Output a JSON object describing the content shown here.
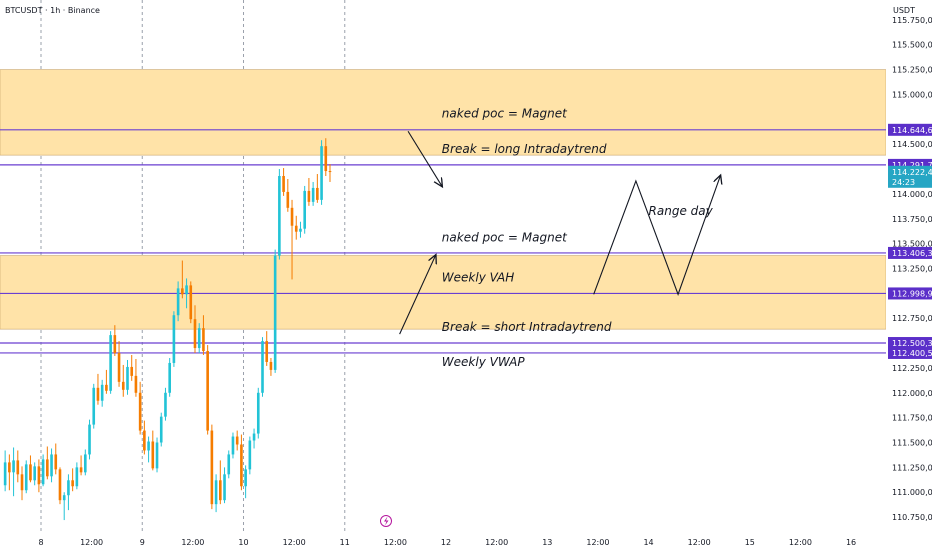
{
  "header": {
    "symbol": "BTCUSDT",
    "interval": "1h",
    "exchange": "Binance",
    "separator": "·",
    "quote_currency": "USDT"
  },
  "colors": {
    "bull": "#26a69a",
    "bull_bright": "#22c3d6",
    "bear": "#f57c00",
    "zone_fill": "#ffe3a8",
    "level_line": "#6a3fd1",
    "tag_bg": "#5b2fc9",
    "current_tag_bg": "#26a6c4",
    "arrow": "#131722"
  },
  "chart_data": {
    "type": "candlestick",
    "y_axis": {
      "range": [
        110600,
        115950
      ],
      "ticks": [
        110750,
        111000,
        111250,
        111500,
        111750,
        112000,
        112250,
        112750,
        113250,
        113500,
        113750,
        114000,
        114500,
        115000,
        115250,
        115500,
        115750
      ],
      "tick_labels": [
        "110.750,00",
        "111.000,00",
        "111.250,00",
        "111.500,00",
        "111.750,00",
        "112.000,00",
        "112.250,00",
        "112.750,00",
        "113.250,00",
        "113.500,00",
        "113.750,00",
        "114.000,00",
        "114.500,00",
        "115.000,00",
        "115.250,00",
        "115.500,00",
        "115.750,00"
      ]
    },
    "x_axis": {
      "range": [
        0,
        210
      ],
      "ticks": [
        {
          "pos": 0,
          "label": "8"
        },
        {
          "pos": 12,
          "label": "12:00"
        },
        {
          "pos": 24,
          "label": "9"
        },
        {
          "pos": 36,
          "label": "12:00"
        },
        {
          "pos": 48,
          "label": "10"
        },
        {
          "pos": 60,
          "label": "12:00"
        },
        {
          "pos": 72,
          "label": "11"
        },
        {
          "pos": 84,
          "label": "12:00"
        },
        {
          "pos": 96,
          "label": "12"
        },
        {
          "pos": 108,
          "label": "12:00"
        },
        {
          "pos": 120,
          "label": "13"
        },
        {
          "pos": 132,
          "label": "12:00"
        },
        {
          "pos": 144,
          "label": "14"
        },
        {
          "pos": 156,
          "label": "12:00"
        },
        {
          "pos": 168,
          "label": "15"
        },
        {
          "pos": 180,
          "label": "12:00"
        },
        {
          "pos": 192,
          "label": "16"
        }
      ],
      "day_separators": [
        0,
        24,
        48,
        72
      ]
    },
    "candles_start_pos": -9,
    "candles": [
      [
        111070,
        111420,
        111010,
        111300
      ],
      [
        111300,
        111380,
        111020,
        111200
      ],
      [
        111200,
        111450,
        110960,
        111320
      ],
      [
        111320,
        111420,
        111100,
        111180
      ],
      [
        111180,
        111260,
        110920,
        111020
      ],
      [
        111020,
        111320,
        110990,
        111280
      ],
      [
        111280,
        111370,
        111100,
        111120
      ],
      [
        111120,
        111300,
        111070,
        111260
      ],
      [
        111260,
        111330,
        111000,
        111080
      ],
      [
        111080,
        111380,
        111060,
        111330
      ],
      [
        111330,
        111460,
        111130,
        111160
      ],
      [
        111160,
        111440,
        111100,
        111380
      ],
      [
        111380,
        111490,
        111180,
        111230
      ],
      [
        111230,
        111250,
        110880,
        110920
      ],
      [
        110920,
        111000,
        110720,
        110970
      ],
      [
        110970,
        111180,
        110820,
        111120
      ],
      [
        111120,
        111240,
        111010,
        111060
      ],
      [
        111060,
        111300,
        111030,
        111250
      ],
      [
        111250,
        111370,
        111170,
        111200
      ],
      [
        111200,
        111430,
        111170,
        111380
      ],
      [
        111380,
        111730,
        111330,
        111680
      ],
      [
        111680,
        112090,
        111640,
        112050
      ],
      [
        112050,
        112190,
        111880,
        111920
      ],
      [
        111920,
        112130,
        111860,
        112080
      ],
      [
        112080,
        112230,
        111990,
        112020
      ],
      [
        112020,
        112620,
        111990,
        112580
      ],
      [
        112580,
        112680,
        112370,
        112400
      ],
      [
        112400,
        112520,
        112060,
        112110
      ],
      [
        112110,
        112280,
        111960,
        112030
      ],
      [
        112030,
        112330,
        111980,
        112260
      ],
      [
        112260,
        112380,
        112120,
        112170
      ],
      [
        112170,
        112340,
        111960,
        112000
      ],
      [
        112000,
        112110,
        111580,
        111620
      ],
      [
        111620,
        111720,
        111380,
        111420
      ],
      [
        111420,
        111560,
        111300,
        111510
      ],
      [
        111510,
        111620,
        111220,
        111240
      ],
      [
        111240,
        111550,
        111200,
        111500
      ],
      [
        111500,
        111800,
        111460,
        111760
      ],
      [
        111760,
        112050,
        111720,
        112000
      ],
      [
        112000,
        112350,
        111960,
        112300
      ],
      [
        112300,
        112820,
        112260,
        112780
      ],
      [
        112780,
        113120,
        112720,
        113050
      ],
      [
        113050,
        113330,
        112950,
        112990
      ],
      [
        112990,
        113150,
        112850,
        113080
      ],
      [
        113080,
        113120,
        112700,
        112740
      ],
      [
        112740,
        112880,
        112400,
        112450
      ],
      [
        112450,
        112700,
        112400,
        112650
      ],
      [
        112650,
        112780,
        112380,
        112420
      ],
      [
        112420,
        112480,
        111580,
        111620
      ],
      [
        111620,
        111680,
        110830,
        110880
      ],
      [
        110880,
        111180,
        110800,
        111120
      ],
      [
        111120,
        111320,
        110880,
        110920
      ],
      [
        110920,
        111250,
        110890,
        111180
      ],
      [
        111180,
        111420,
        111140,
        111380
      ],
      [
        111380,
        111600,
        111340,
        111560
      ],
      [
        111560,
        111620,
        111420,
        111480
      ],
      [
        111480,
        111580,
        111020,
        111060
      ],
      [
        111060,
        111270,
        110940,
        111230
      ],
      [
        111230,
        111560,
        111180,
        111520
      ],
      [
        111520,
        111640,
        111440,
        111590
      ],
      [
        111590,
        112050,
        111540,
        112000
      ],
      [
        112000,
        112560,
        111960,
        112520
      ],
      [
        112520,
        112620,
        112270,
        112310
      ],
      [
        112310,
        112350,
        112170,
        112230
      ],
      [
        112230,
        113440,
        112200,
        113380
      ],
      [
        113380,
        114250,
        113340,
        114180
      ],
      [
        114180,
        114260,
        113980,
        114020
      ],
      [
        114020,
        114150,
        113820,
        113860
      ],
      [
        113860,
        113940,
        113140,
        113680
      ],
      [
        113680,
        113780,
        113540,
        113620
      ],
      [
        113620,
        113720,
        113560,
        113650
      ],
      [
        113650,
        114080,
        113600,
        114030
      ],
      [
        114030,
        114160,
        113880,
        113920
      ],
      [
        113920,
        114120,
        113880,
        114060
      ],
      [
        114060,
        114200,
        113910,
        113940
      ],
      [
        113940,
        114540,
        113890,
        114480
      ],
      [
        114480,
        114560,
        114180,
        114230
      ],
      [
        114230,
        114300,
        114120,
        114222.47
      ]
    ],
    "zones": [
      {
        "top": 115250,
        "bottom": 114390
      },
      {
        "top": 113380,
        "bottom": 112640
      }
    ],
    "levels": [
      {
        "value": 114644.63,
        "label": "114.644,63"
      },
      {
        "value": 114291.76,
        "label": "114.291,76"
      },
      {
        "value": 113406.36,
        "label": "113.406,36"
      },
      {
        "value": 112998.98,
        "label": "112.998,98"
      },
      {
        "value": 112500.36,
        "label": "112.500,36"
      },
      {
        "value": 112400.56,
        "label": "112.400,56"
      }
    ],
    "current_price": {
      "value": 114222.47,
      "label": "114.222,47",
      "countdown": "24:23"
    },
    "annotations": [
      {
        "text": "naked poc = Magnet",
        "pos": 95,
        "value": 114770
      },
      {
        "text": "Break = long Intradaytrend",
        "pos": 95,
        "value": 114410
      },
      {
        "text": "naked poc = Magnet",
        "pos": 95,
        "value": 113520
      },
      {
        "text": "Weekly VAH",
        "pos": 95,
        "value": 113120
      },
      {
        "text": "Break = short Intradaytrend",
        "pos": 95,
        "value": 112620
      },
      {
        "text": "Weekly VWAP",
        "pos": 95,
        "value": 112270
      },
      {
        "text": "Range day",
        "pos": 144,
        "value": 113790
      }
    ],
    "arrows": [
      [
        [
          87,
          114630
        ],
        [
          95,
          114080
        ]
      ],
      [
        [
          85,
          112590
        ],
        [
          93.5,
          113380
        ]
      ]
    ],
    "range_path": [
      [
        131,
        112990
      ],
      [
        141,
        114130
      ],
      [
        151,
        112990
      ],
      [
        161,
        114180
      ]
    ]
  }
}
